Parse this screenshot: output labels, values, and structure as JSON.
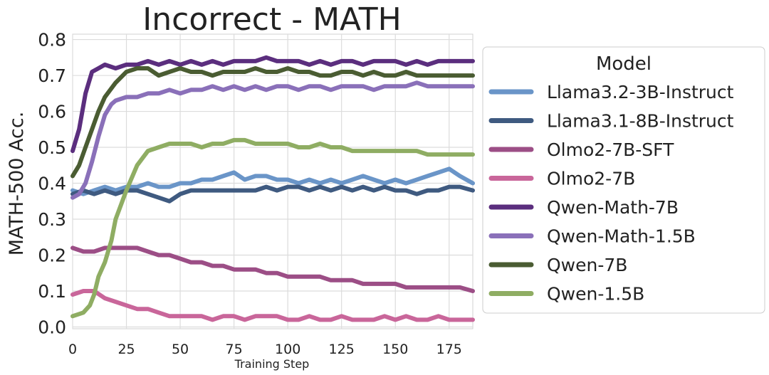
{
  "chart_data": {
    "type": "line",
    "title": "Incorrect - MATH",
    "xlabel": "Training Step",
    "ylabel": "MATH-500 Acc.",
    "xlim": [
      0,
      186
    ],
    "ylim": [
      -0.005,
      0.815
    ],
    "xticks": [
      0,
      25,
      50,
      75,
      100,
      125,
      150,
      175
    ],
    "xtick_labels": [
      "0",
      "25",
      "50",
      "75",
      "100",
      "125",
      "150",
      "175"
    ],
    "yticks": [
      0.0,
      0.1,
      0.2,
      0.3,
      0.4,
      0.5,
      0.6,
      0.7,
      0.8
    ],
    "ytick_labels": [
      "0.0",
      "0.1",
      "0.2",
      "0.3",
      "0.4",
      "0.5",
      "0.6",
      "0.7",
      "0.8"
    ],
    "grid": true,
    "legend": {
      "title": "Model",
      "placement": "outside-right"
    },
    "series": [
      {
        "name": "Llama3.2-3B-Instruct",
        "color": "#6a95c8",
        "x": [
          0,
          5,
          10,
          15,
          20,
          25,
          30,
          35,
          40,
          45,
          50,
          55,
          60,
          65,
          70,
          75,
          80,
          85,
          90,
          95,
          100,
          105,
          110,
          115,
          120,
          125,
          130,
          135,
          140,
          145,
          150,
          155,
          160,
          165,
          170,
          175,
          180,
          186
        ],
        "y": [
          0.38,
          0.37,
          0.38,
          0.39,
          0.38,
          0.39,
          0.39,
          0.4,
          0.39,
          0.39,
          0.4,
          0.4,
          0.41,
          0.41,
          0.42,
          0.43,
          0.41,
          0.42,
          0.42,
          0.41,
          0.41,
          0.4,
          0.41,
          0.4,
          0.41,
          0.4,
          0.41,
          0.42,
          0.41,
          0.4,
          0.41,
          0.4,
          0.41,
          0.42,
          0.43,
          0.44,
          0.42,
          0.4
        ]
      },
      {
        "name": "Llama3.1-8B-Instruct",
        "color": "#3f5a80",
        "x": [
          0,
          5,
          10,
          15,
          20,
          25,
          30,
          35,
          40,
          45,
          50,
          55,
          60,
          65,
          70,
          75,
          80,
          85,
          90,
          95,
          100,
          105,
          110,
          115,
          120,
          125,
          130,
          135,
          140,
          145,
          150,
          155,
          160,
          165,
          170,
          175,
          180,
          186
        ],
        "y": [
          0.37,
          0.38,
          0.37,
          0.38,
          0.37,
          0.38,
          0.38,
          0.37,
          0.36,
          0.35,
          0.37,
          0.38,
          0.38,
          0.38,
          0.38,
          0.38,
          0.38,
          0.38,
          0.39,
          0.38,
          0.39,
          0.39,
          0.38,
          0.39,
          0.38,
          0.39,
          0.38,
          0.39,
          0.38,
          0.39,
          0.38,
          0.38,
          0.37,
          0.38,
          0.38,
          0.39,
          0.39,
          0.38
        ]
      },
      {
        "name": "Olmo2-7B-SFT",
        "color": "#9c4e86",
        "x": [
          0,
          5,
          10,
          15,
          20,
          25,
          30,
          35,
          40,
          45,
          50,
          55,
          60,
          65,
          70,
          75,
          80,
          85,
          90,
          95,
          100,
          105,
          110,
          115,
          120,
          125,
          130,
          135,
          140,
          145,
          150,
          155,
          160,
          165,
          170,
          175,
          180,
          186
        ],
        "y": [
          0.22,
          0.21,
          0.21,
          0.22,
          0.22,
          0.22,
          0.22,
          0.21,
          0.2,
          0.2,
          0.19,
          0.18,
          0.18,
          0.17,
          0.17,
          0.16,
          0.16,
          0.16,
          0.15,
          0.15,
          0.14,
          0.14,
          0.14,
          0.14,
          0.13,
          0.13,
          0.13,
          0.12,
          0.12,
          0.12,
          0.12,
          0.11,
          0.11,
          0.11,
          0.11,
          0.11,
          0.11,
          0.1
        ]
      },
      {
        "name": "Olmo2-7B",
        "color": "#c9669a",
        "x": [
          0,
          5,
          10,
          15,
          20,
          25,
          30,
          35,
          40,
          45,
          50,
          55,
          60,
          65,
          70,
          75,
          80,
          85,
          90,
          95,
          100,
          105,
          110,
          115,
          120,
          125,
          130,
          135,
          140,
          145,
          150,
          155,
          160,
          165,
          170,
          175,
          180,
          186
        ],
        "y": [
          0.09,
          0.1,
          0.1,
          0.08,
          0.07,
          0.06,
          0.05,
          0.05,
          0.04,
          0.03,
          0.03,
          0.03,
          0.03,
          0.02,
          0.03,
          0.03,
          0.02,
          0.03,
          0.03,
          0.03,
          0.02,
          0.02,
          0.03,
          0.02,
          0.02,
          0.03,
          0.02,
          0.02,
          0.02,
          0.03,
          0.02,
          0.03,
          0.02,
          0.02,
          0.03,
          0.02,
          0.02,
          0.02
        ]
      },
      {
        "name": "Qwen-Math-7B",
        "color": "#5b2e7e",
        "x": [
          0,
          3,
          6,
          9,
          12,
          15,
          20,
          25,
          30,
          35,
          40,
          45,
          50,
          55,
          60,
          65,
          70,
          75,
          80,
          85,
          90,
          95,
          100,
          105,
          110,
          115,
          120,
          125,
          130,
          135,
          140,
          145,
          150,
          155,
          160,
          165,
          170,
          175,
          180,
          186
        ],
        "y": [
          0.49,
          0.55,
          0.65,
          0.71,
          0.72,
          0.73,
          0.72,
          0.73,
          0.73,
          0.74,
          0.73,
          0.74,
          0.73,
          0.74,
          0.73,
          0.74,
          0.73,
          0.74,
          0.74,
          0.74,
          0.75,
          0.74,
          0.74,
          0.74,
          0.73,
          0.74,
          0.73,
          0.74,
          0.74,
          0.73,
          0.74,
          0.74,
          0.74,
          0.73,
          0.74,
          0.73,
          0.74,
          0.74,
          0.74,
          0.74
        ]
      },
      {
        "name": "Qwen-Math-1.5B",
        "color": "#8a70b9",
        "x": [
          0,
          3,
          6,
          9,
          12,
          15,
          18,
          20,
          25,
          30,
          35,
          40,
          45,
          50,
          55,
          60,
          65,
          70,
          75,
          80,
          85,
          90,
          95,
          100,
          105,
          110,
          115,
          120,
          125,
          130,
          135,
          140,
          145,
          150,
          155,
          160,
          165,
          170,
          175,
          180,
          186
        ],
        "y": [
          0.36,
          0.37,
          0.4,
          0.46,
          0.53,
          0.59,
          0.62,
          0.63,
          0.64,
          0.64,
          0.65,
          0.65,
          0.66,
          0.65,
          0.66,
          0.66,
          0.67,
          0.66,
          0.67,
          0.66,
          0.67,
          0.66,
          0.67,
          0.67,
          0.66,
          0.67,
          0.67,
          0.66,
          0.67,
          0.67,
          0.67,
          0.66,
          0.67,
          0.67,
          0.67,
          0.68,
          0.67,
          0.67,
          0.67,
          0.67,
          0.67
        ]
      },
      {
        "name": "Qwen-7B",
        "color": "#4a5c32",
        "x": [
          0,
          3,
          6,
          9,
          12,
          15,
          20,
          25,
          30,
          35,
          40,
          45,
          50,
          55,
          60,
          65,
          70,
          75,
          80,
          85,
          90,
          95,
          100,
          105,
          110,
          115,
          120,
          125,
          130,
          135,
          140,
          145,
          150,
          155,
          160,
          165,
          170,
          175,
          180,
          186
        ],
        "y": [
          0.42,
          0.45,
          0.5,
          0.55,
          0.6,
          0.64,
          0.68,
          0.71,
          0.72,
          0.72,
          0.7,
          0.71,
          0.72,
          0.71,
          0.71,
          0.7,
          0.71,
          0.71,
          0.71,
          0.72,
          0.71,
          0.71,
          0.72,
          0.71,
          0.71,
          0.7,
          0.7,
          0.71,
          0.71,
          0.7,
          0.71,
          0.7,
          0.7,
          0.71,
          0.7,
          0.7,
          0.7,
          0.7,
          0.7,
          0.7
        ]
      },
      {
        "name": "Qwen-1.5B",
        "color": "#8fad63",
        "x": [
          0,
          5,
          8,
          10,
          12,
          15,
          18,
          20,
          25,
          30,
          35,
          40,
          45,
          50,
          55,
          60,
          65,
          70,
          75,
          80,
          85,
          90,
          95,
          100,
          105,
          110,
          115,
          120,
          125,
          130,
          135,
          140,
          145,
          150,
          155,
          160,
          165,
          170,
          175,
          180,
          186
        ],
        "y": [
          0.03,
          0.04,
          0.06,
          0.09,
          0.14,
          0.18,
          0.24,
          0.3,
          0.38,
          0.45,
          0.49,
          0.5,
          0.51,
          0.51,
          0.51,
          0.5,
          0.51,
          0.51,
          0.52,
          0.52,
          0.51,
          0.51,
          0.51,
          0.51,
          0.5,
          0.5,
          0.51,
          0.5,
          0.5,
          0.49,
          0.49,
          0.49,
          0.49,
          0.49,
          0.49,
          0.49,
          0.48,
          0.48,
          0.48,
          0.48,
          0.48
        ]
      }
    ]
  }
}
